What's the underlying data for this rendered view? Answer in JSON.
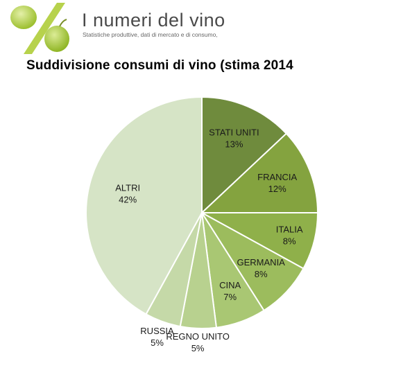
{
  "header": {
    "site_title": "I numeri del vino",
    "site_subtitle": "Statistiche produttive, dati di mercato e di consumo,",
    "logo_icon": "grape-percent-icon"
  },
  "colors": {
    "logo_green": "#a9c93a",
    "slice_stroke": "#ffffff"
  },
  "chart_data": {
    "type": "pie",
    "title": "Suddivisione consumi di vino (stima 2014",
    "slices": [
      {
        "label": "STATI UNITI",
        "value": 13,
        "value_label": "13%",
        "color": "#6f8b3d"
      },
      {
        "label": "FRANCIA",
        "value": 12,
        "value_label": "12%",
        "color": "#84a33f"
      },
      {
        "label": "ITALIA",
        "value": 8,
        "value_label": "8%",
        "color": "#8fb04a"
      },
      {
        "label": "GERMANIA",
        "value": 8,
        "value_label": "8%",
        "color": "#9cbc5d"
      },
      {
        "label": "CINA",
        "value": 7,
        "value_label": "7%",
        "color": "#a9c773"
      },
      {
        "label": "REGNO UNITO",
        "value": 5,
        "value_label": "5%",
        "color": "#b8d18f"
      },
      {
        "label": "RUSSIA",
        "value": 5,
        "value_label": "5%",
        "color": "#c5d9a8"
      },
      {
        "label": "ALTRI",
        "value": 42,
        "value_label": "42%",
        "color": "#d6e4c6"
      }
    ],
    "start_angle": "12 o'clock",
    "direction": "clockwise",
    "legend": "none"
  }
}
